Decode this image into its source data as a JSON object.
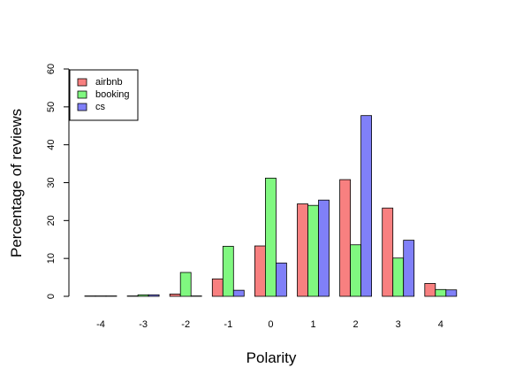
{
  "chart_data": {
    "type": "bar",
    "title": "",
    "xlabel": "Polarity",
    "ylabel": "Percentage of reviews",
    "categories": [
      "-4",
      "-3",
      "-2",
      "-1",
      "0",
      "1",
      "2",
      "3",
      "4"
    ],
    "series": [
      {
        "name": "airbnb",
        "color": "#f88080",
        "values": [
          0.1,
          0.1,
          0.6,
          4.6,
          13.3,
          24.4,
          30.8,
          23.3,
          3.4
        ]
      },
      {
        "name": "booking",
        "color": "#80f880",
        "values": [
          0.1,
          0.4,
          6.3,
          13.2,
          31.2,
          24.0,
          13.6,
          10.1,
          1.8
        ]
      },
      {
        "name": "cs",
        "color": "#8080f8",
        "values": [
          0.1,
          0.4,
          0.1,
          1.6,
          8.8,
          25.4,
          47.7,
          14.8,
          1.7
        ]
      }
    ],
    "ylim": [
      0,
      60
    ],
    "yticks": [
      0,
      10,
      20,
      30,
      40,
      50,
      60
    ],
    "legend": "top-left",
    "grid": false
  }
}
